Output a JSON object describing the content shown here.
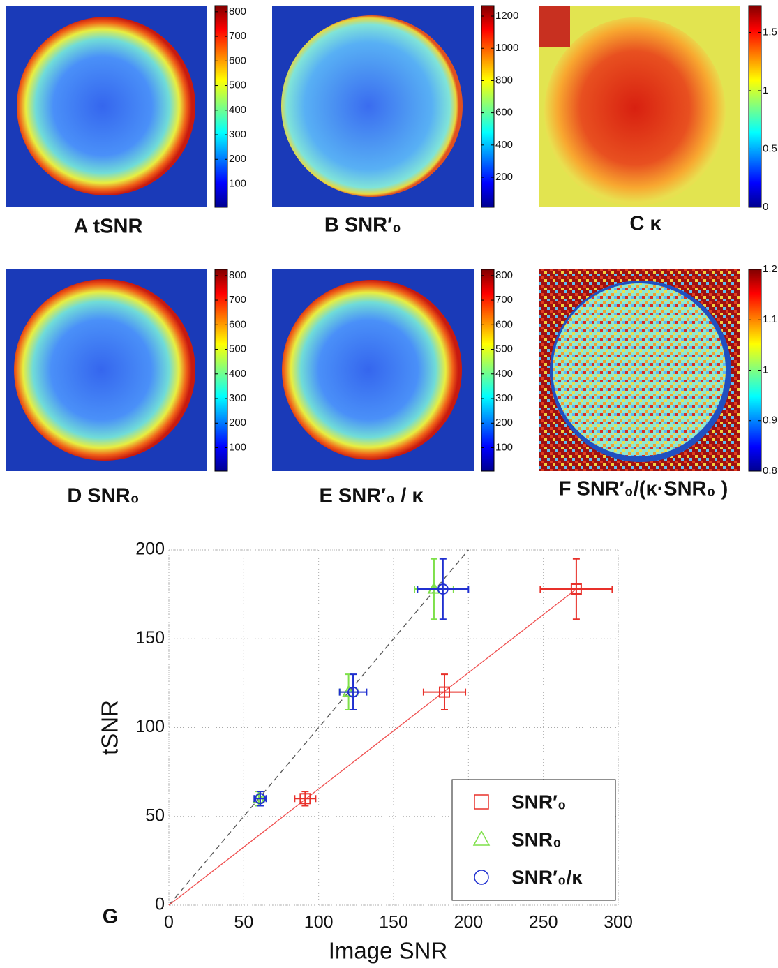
{
  "chart_data": [
    {
      "type": "heatmap",
      "title": "A tSNR",
      "clim": [
        5,
        825
      ],
      "cticks": [
        100,
        200,
        300,
        400,
        500,
        600,
        700,
        800
      ]
    },
    {
      "type": "heatmap",
      "title": "B SNR′₀",
      "clim": [
        14,
        1265
      ],
      "cticks": [
        200,
        400,
        600,
        800,
        1000,
        1200
      ]
    },
    {
      "type": "heatmap",
      "title": "C κ",
      "clim": [
        0,
        1.73
      ],
      "cticks": [
        0,
        0.5,
        1,
        1.5
      ]
    },
    {
      "type": "heatmap",
      "title": "D SNR₀",
      "clim": [
        5,
        825
      ],
      "cticks": [
        100,
        200,
        300,
        400,
        500,
        600,
        700,
        800
      ]
    },
    {
      "type": "heatmap",
      "title": "E SNR′₀ / κ",
      "clim": [
        5,
        825
      ],
      "cticks": [
        100,
        200,
        300,
        400,
        500,
        600,
        700,
        800
      ]
    },
    {
      "type": "heatmap",
      "title": "F SNR′₀/(κ·SNR₀ )",
      "clim": [
        0.8,
        1.2
      ],
      "cticks": [
        0.8,
        0.9,
        1,
        1.1,
        1.2
      ]
    },
    {
      "type": "scatter",
      "panel_label": "G",
      "x_label": "Image SNR",
      "y_label": "tSNR",
      "xlim": [
        0,
        300
      ],
      "ylim": [
        0,
        200
      ],
      "xticks": [
        0,
        50,
        100,
        150,
        200,
        250,
        300
      ],
      "yticks": [
        0,
        50,
        100,
        150,
        200
      ],
      "grid": true,
      "legend": "lower right",
      "lines": [
        {
          "x": [
            0,
            200
          ],
          "y": [
            0,
            200
          ],
          "color": "#555555",
          "dash": true
        },
        {
          "x": [
            0,
            272
          ],
          "y": [
            0,
            178
          ],
          "color": "#f05050",
          "dash": false
        }
      ],
      "series": [
        {
          "name": "SNR′₀",
          "color": "#e8302a",
          "marker": "square",
          "x": [
            91,
            184,
            272
          ],
          "y": [
            60,
            120,
            178
          ],
          "xerr": [
            7,
            14,
            24
          ],
          "yerr": [
            4,
            10,
            17
          ]
        },
        {
          "name": "SNR₀",
          "color": "#7ee04a",
          "marker": "triangle",
          "x": [
            60,
            120,
            177
          ],
          "y": [
            60,
            120,
            178
          ],
          "xerr": [
            3,
            6,
            13
          ],
          "yerr": [
            4,
            10,
            17
          ]
        },
        {
          "name": "SNR′₀/κ",
          "color": "#2030d0",
          "marker": "circle",
          "x": [
            61,
            123,
            183
          ],
          "y": [
            60,
            120,
            178
          ],
          "xerr": [
            4,
            9,
            17
          ],
          "yerr": [
            4,
            10,
            17
          ]
        }
      ]
    }
  ]
}
